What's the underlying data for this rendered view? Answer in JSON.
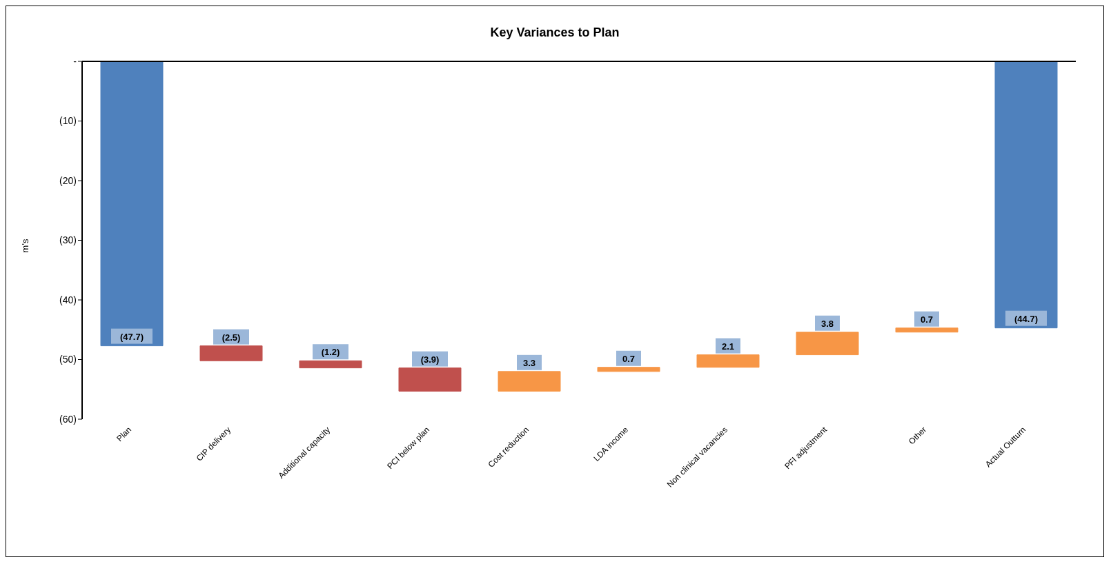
{
  "chart_data": {
    "type": "bar",
    "title": "Key Variances to Plan",
    "ylabel": "m's",
    "categories": [
      "Plan",
      "CIP delivery",
      "Additional capacity",
      "PCI below plan",
      "Cost reduction",
      "LDA income",
      "Non clinical vacancies",
      "PFI adjustment",
      "Other",
      "Actual Outturn"
    ],
    "values": [
      -47.7,
      -2.5,
      -1.2,
      -3.9,
      3.3,
      0.7,
      2.1,
      3.8,
      0.7,
      -44.7
    ],
    "base": [
      0,
      -47.7,
      -50.2,
      -51.4,
      -55.3,
      -52.0,
      -51.3,
      -49.2,
      -45.4,
      0
    ],
    "colors": [
      "#4f81bd",
      "#c0504d",
      "#c0504d",
      "#c0504d",
      "#f79646",
      "#f79646",
      "#f79646",
      "#f79646",
      "#f79646",
      "#4f81bd"
    ],
    "value_labels": [
      "(47.7)",
      "(2.5)",
      "(1.2)",
      "(3.9)",
      "3.3",
      "0.7",
      "2.1",
      "3.8",
      "0.7",
      "(44.7)"
    ],
    "ylim": [
      -60,
      0
    ],
    "yticks": [
      {
        "value": -60,
        "label": "(60)"
      },
      {
        "value": -50,
        "label": "(50)"
      },
      {
        "value": -40,
        "label": "(40)"
      },
      {
        "value": -30,
        "label": "(30)"
      },
      {
        "value": -20,
        "label": "(20)"
      },
      {
        "value": -10,
        "label": "(10)"
      },
      {
        "value": 0,
        "label": "-"
      }
    ],
    "grid": false,
    "legend": false
  }
}
